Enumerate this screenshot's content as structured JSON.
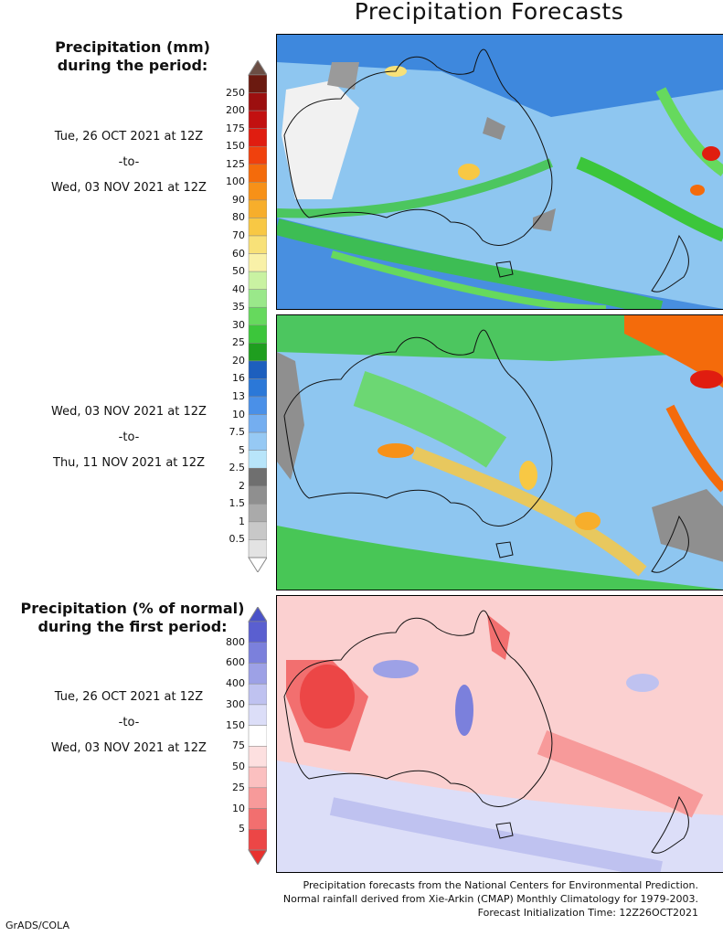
{
  "title": "Precipitation Forecasts",
  "period1": {
    "heading_line1": "Precipitation (mm)",
    "heading_line2": "during the period:",
    "start": "Tue, 26 OCT 2021 at 12Z",
    "sep": "-to-",
    "end": "Wed, 03 NOV 2021 at 12Z"
  },
  "period2": {
    "start": "Wed, 03 NOV 2021 at 12Z",
    "sep": "-to-",
    "end": "Thu, 11 NOV 2021 at 12Z"
  },
  "anomaly": {
    "heading_line1": "Precipitation (% of normal)",
    "heading_line2": "during the first period:",
    "start": "Tue, 26 OCT 2021 at 12Z",
    "sep": "-to-",
    "end": "Wed, 03 NOV 2021 at 12Z"
  },
  "precip_scale": {
    "labels": [
      "250",
      "200",
      "175",
      "150",
      "125",
      "100",
      "90",
      "80",
      "70",
      "60",
      "50",
      "40",
      "35",
      "30",
      "25",
      "20",
      "16",
      "13",
      "10",
      "7.5",
      "5",
      "2.5",
      "2",
      "1.5",
      "1",
      "0.5"
    ],
    "colors": [
      "#6b1a10",
      "#9c0f0f",
      "#c21010",
      "#e01d10",
      "#f0410d",
      "#f46b0b",
      "#f79118",
      "#f7ae2b",
      "#f8c844",
      "#f8e178",
      "#f9f1a8",
      "#c9f2a2",
      "#9ae88a",
      "#66d95d",
      "#3cc63b",
      "#1f9e1f",
      "#1d5fbe",
      "#2b78d8",
      "#4a90e8",
      "#74aef0",
      "#96c9f4",
      "#b8e5fa",
      "#6f6f6f",
      "#8f8f8f",
      "#aaaaaa",
      "#c8c8c8",
      "#e3e3e3"
    ],
    "cap_top": "#6b4e44",
    "cap_bottom": "#ffffff"
  },
  "pct_scale": {
    "labels": [
      "800",
      "600",
      "400",
      "300",
      "150",
      "75",
      "50",
      "25",
      "10",
      "5"
    ],
    "colors": [
      "#5a5fd0",
      "#7b80dc",
      "#9da1e6",
      "#bfc2f0",
      "#dcdef8",
      "#ffffff",
      "#fde0e0",
      "#fbc0c0",
      "#f79a9a",
      "#f26f6f",
      "#ec4646"
    ],
    "cap_top": "#4a52c8",
    "cap_bottom": "#e8312e"
  },
  "footer": {
    "line1": "Precipitation forecasts from the National Centers for Environmental Prediction.",
    "line2": "Normal rainfall derived from Xie-Arkin (CMAP) Monthly Climatology for 1979-2003.",
    "line3": "Forecast Initialization Time: 12Z26OCT2021"
  },
  "credit": "GrADS/COLA"
}
